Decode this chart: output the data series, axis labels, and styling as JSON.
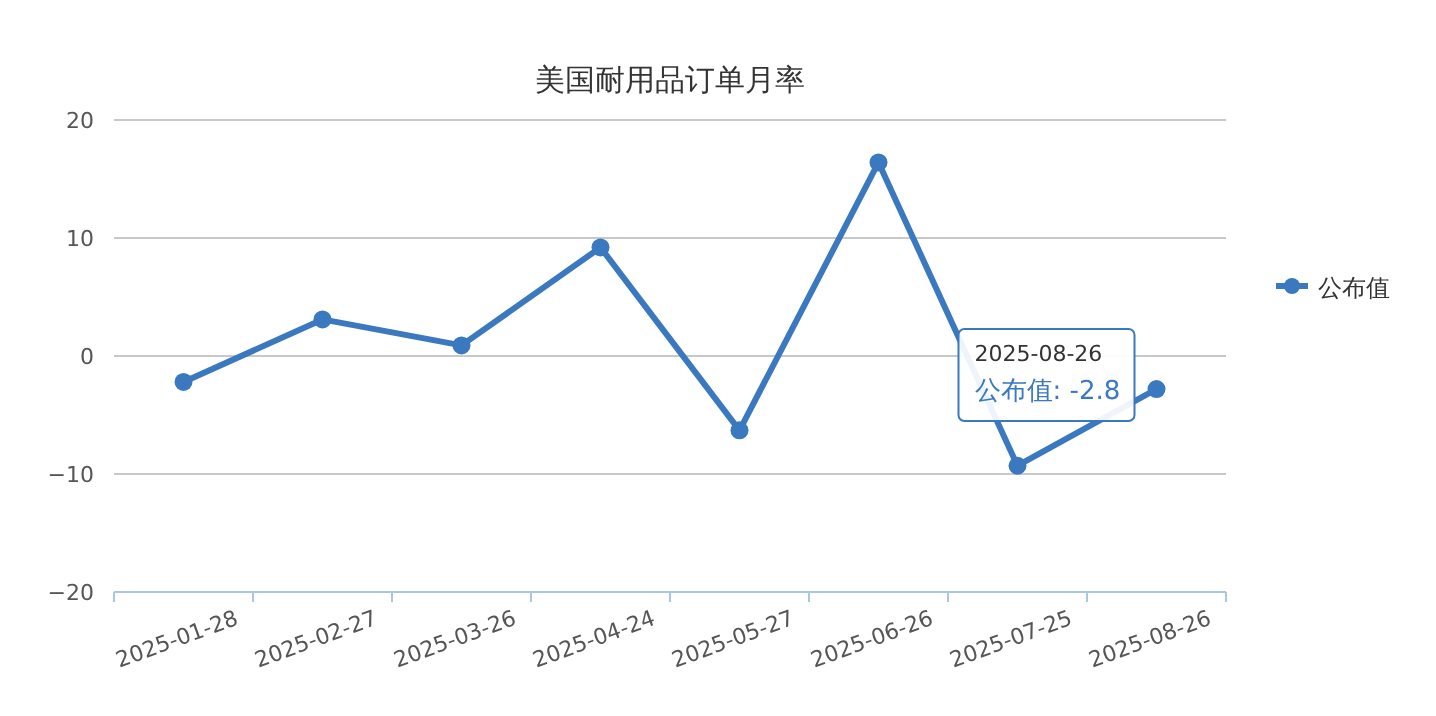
{
  "chart_data": {
    "type": "line",
    "title": "美国耐用品订单月率",
    "categories": [
      "2025-01-28",
      "2025-02-27",
      "2025-03-26",
      "2025-04-24",
      "2025-05-27",
      "2025-06-26",
      "2025-07-25",
      "2025-08-26"
    ],
    "series": [
      {
        "name": "公布值",
        "color": "#3a78c0",
        "values": [
          -2.2,
          3.1,
          0.9,
          9.2,
          -6.3,
          16.4,
          -9.3,
          -2.8
        ]
      }
    ],
    "ylim": [
      -20,
      20
    ],
    "yticks": [
      -20,
      -10,
      0,
      10,
      20
    ],
    "grid": "y",
    "legend": "right",
    "marker": "circle",
    "line_style": "solid",
    "annotations": [
      {
        "text": "2025-08-26",
        "x": "2025-08-26",
        "y": -2.8
      },
      {
        "text": "公布值: -2.8",
        "x": "2025-08-26",
        "y": -2.8
      }
    ]
  }
}
